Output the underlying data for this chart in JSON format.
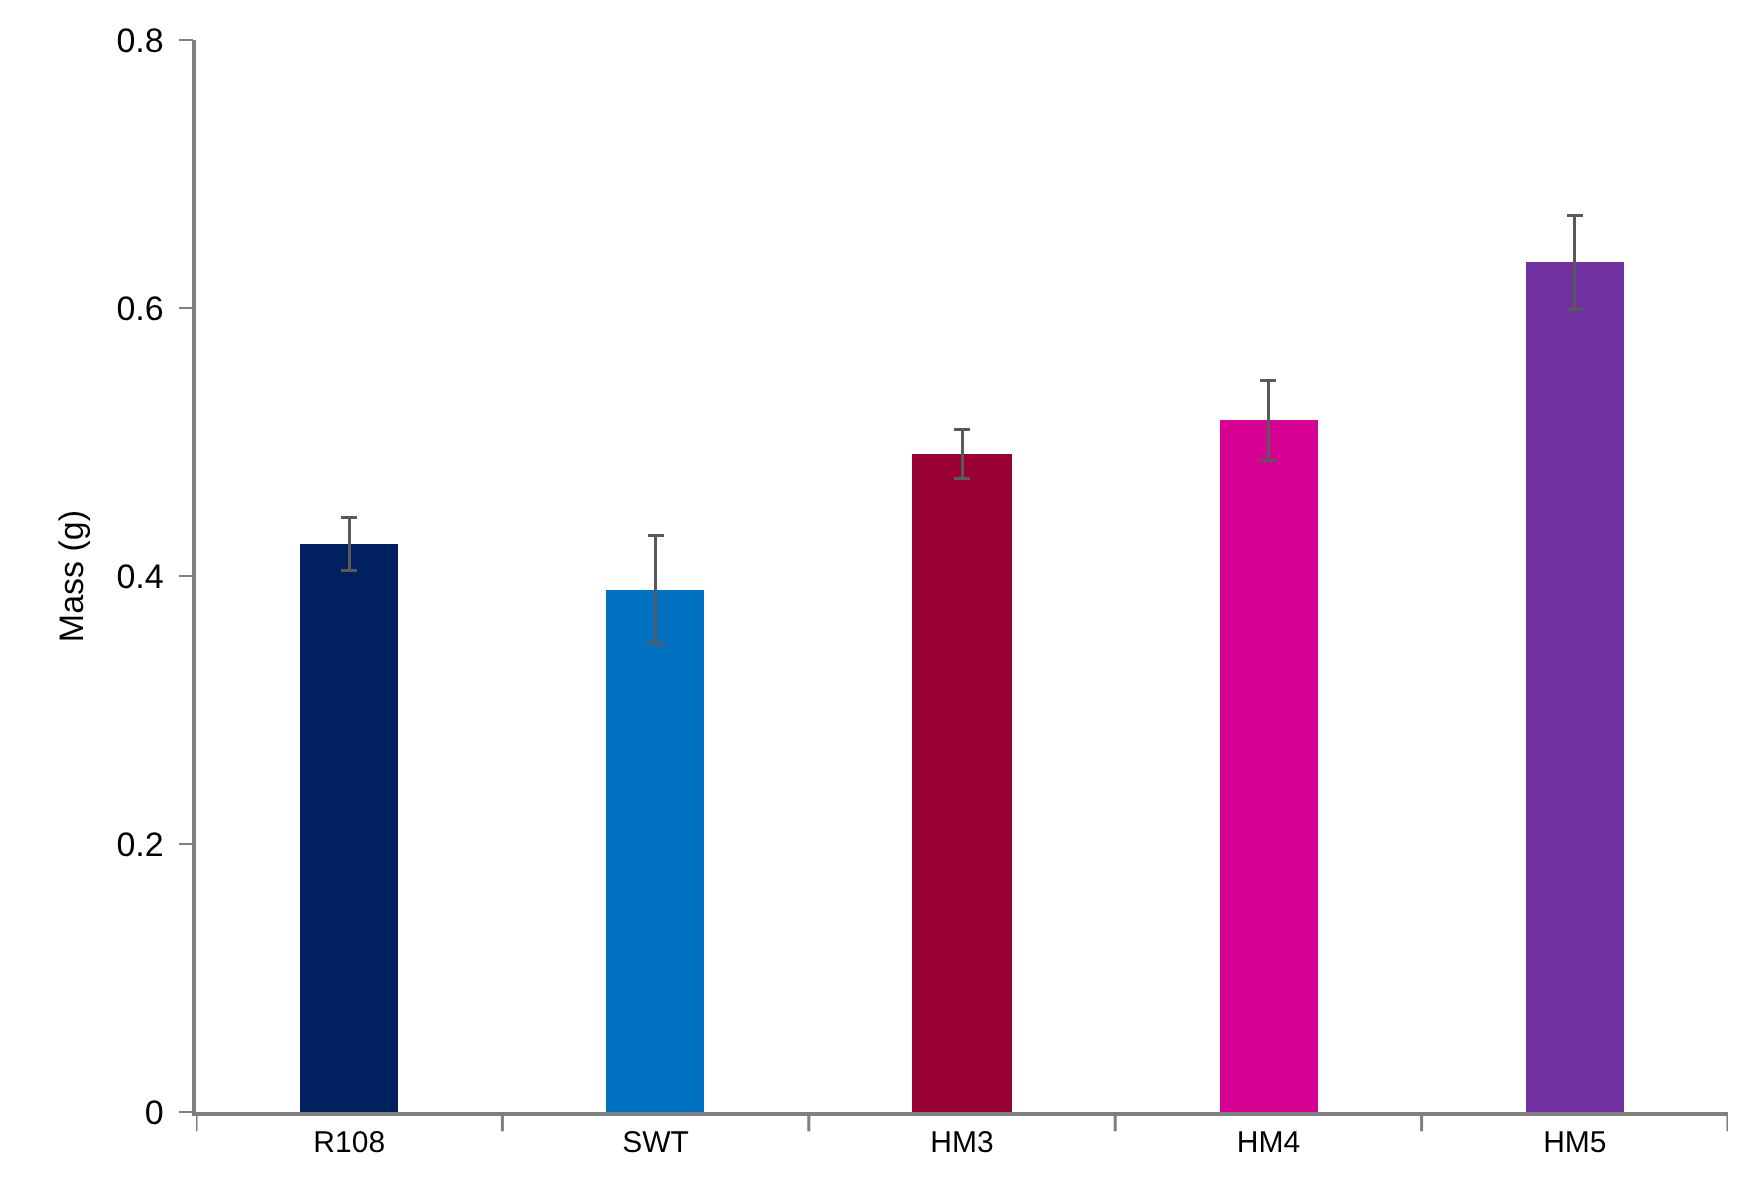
{
  "chart_data": {
    "type": "bar",
    "ylabel": "Mass (g)",
    "categories": [
      "R108",
      "SWT",
      "HM3",
      "HM4",
      "HM5"
    ],
    "values": [
      0.424,
      0.39,
      0.491,
      0.516,
      0.634
    ],
    "errors": [
      0.02,
      0.04,
      0.018,
      0.03,
      0.035
    ],
    "colors": [
      "#002060",
      "#0070c0",
      "#990033",
      "#d60093",
      "#7030a0"
    ],
    "ylim": [
      0,
      0.8
    ],
    "yticks": [
      {
        "value": 0,
        "label": "0"
      },
      0.2,
      0.4,
      0.6,
      0.8
    ],
    "grid": false
  }
}
